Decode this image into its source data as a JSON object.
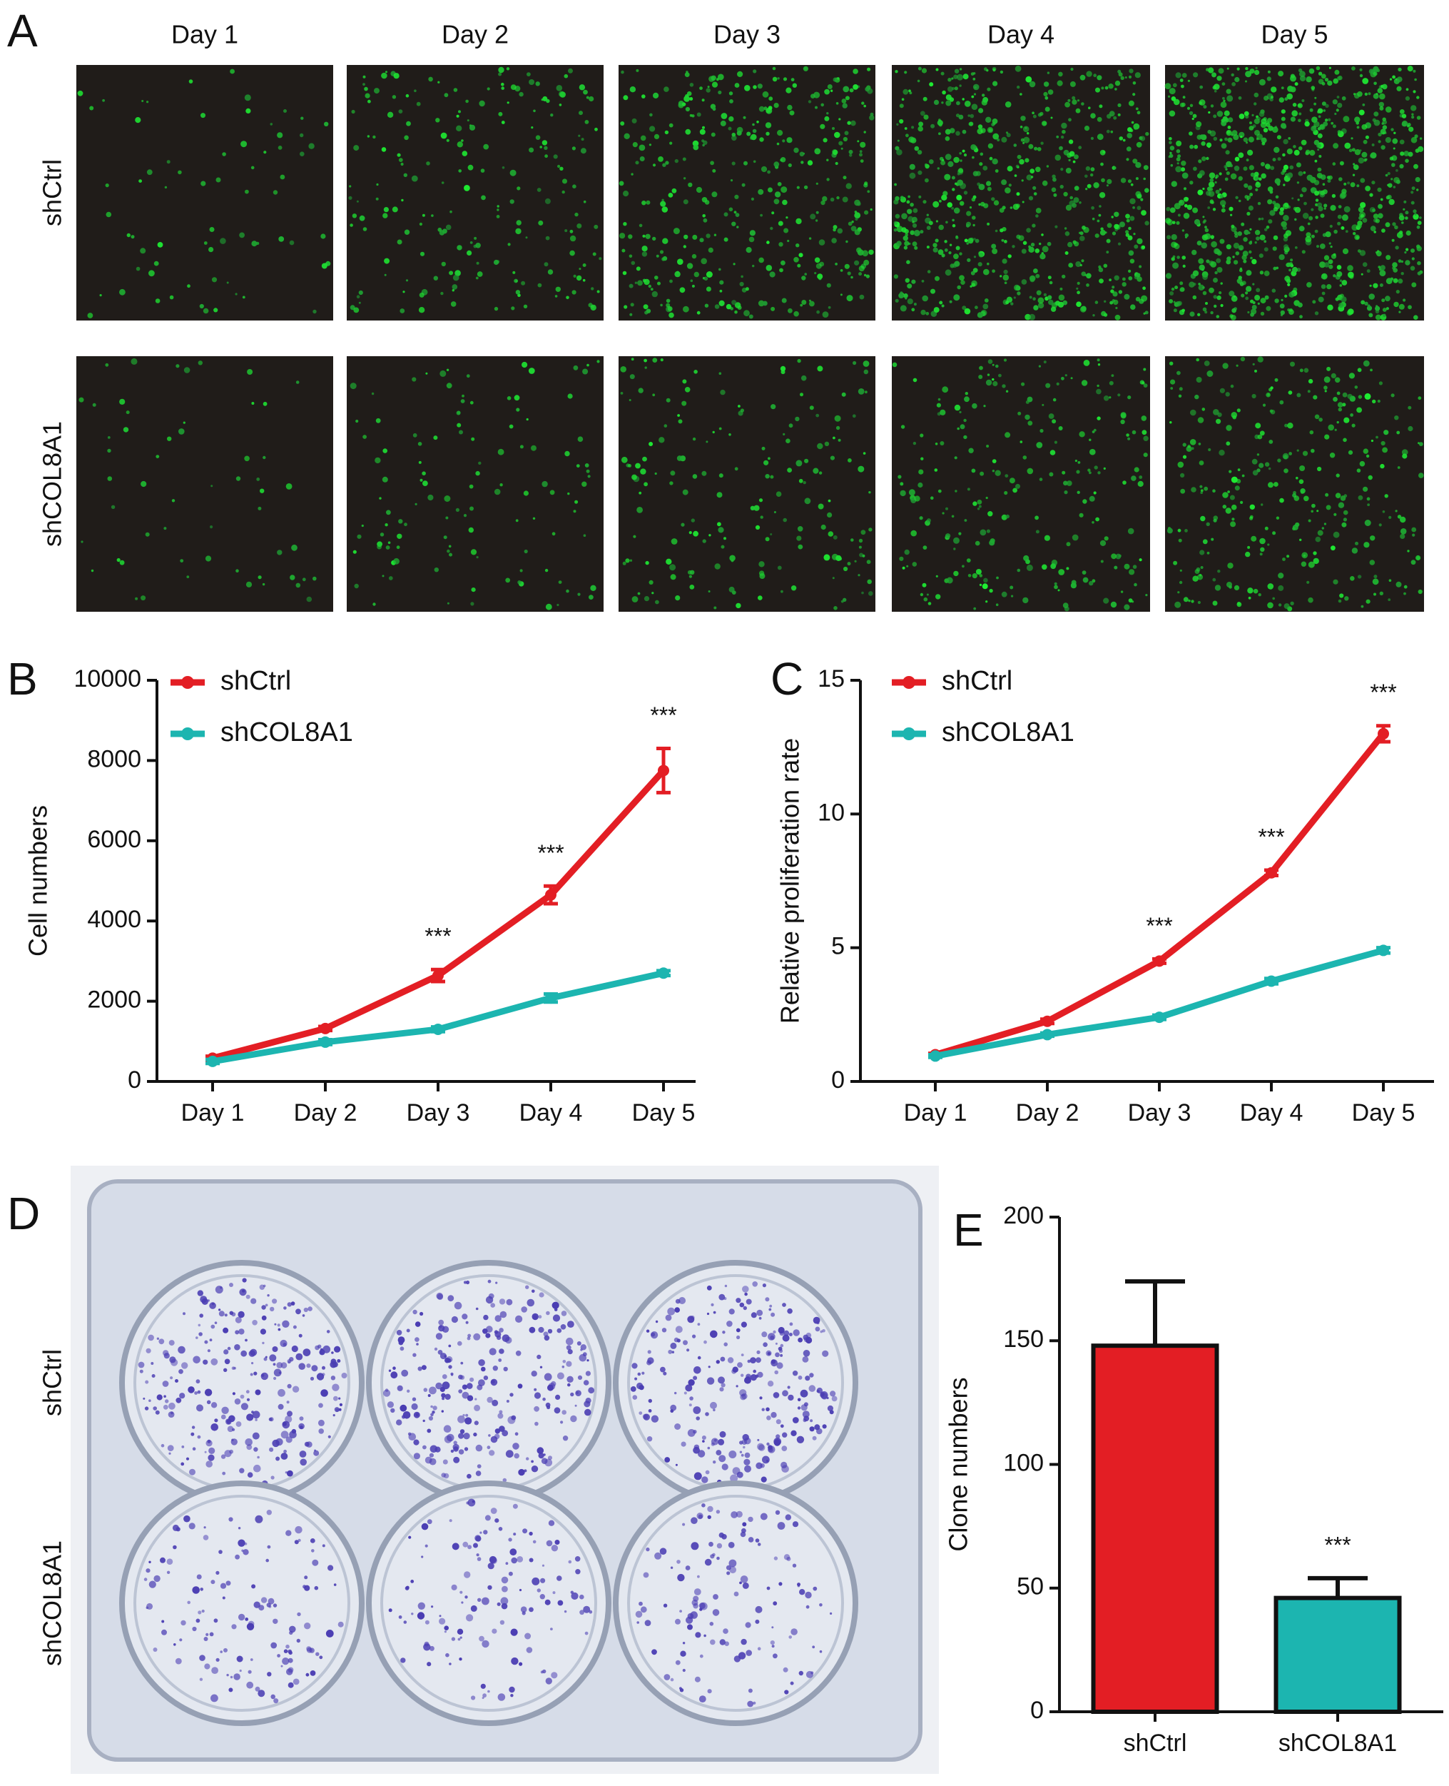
{
  "figure": {
    "panel_labels": [
      "A",
      "B",
      "C",
      "D",
      "E"
    ],
    "panel_a": {
      "columns": [
        "Day 1",
        "Day 2",
        "Day 3",
        "Day 4",
        "Day 5"
      ],
      "rows": [
        "shCtrl",
        "shCOL8A1"
      ]
    },
    "panel_d": {
      "rows": [
        "shCtrl",
        "shCOL8A1"
      ]
    }
  },
  "chart_data": [
    {
      "type": "line",
      "ylabel": "Cell numbers",
      "categories": [
        "Day 1",
        "Day 2",
        "Day 3",
        "Day 4",
        "Day 5"
      ],
      "ylim": [
        0,
        10000
      ],
      "yticks": [
        0,
        2000,
        4000,
        6000,
        8000,
        10000
      ],
      "series": [
        {
          "name": "shCtrl",
          "color": "#e31e24",
          "values": [
            580,
            1320,
            2640,
            4650,
            7750
          ],
          "errors": [
            50,
            50,
            150,
            220,
            550
          ]
        },
        {
          "name": "shCOL8A1",
          "color": "#1cb5b0",
          "values": [
            500,
            980,
            1300,
            2080,
            2700
          ],
          "errors": [
            50,
            60,
            60,
            100,
            60
          ]
        }
      ],
      "annotations": [
        "***",
        "***",
        "***"
      ]
    },
    {
      "type": "line",
      "ylabel": "Relative proliferation rate",
      "categories": [
        "Day 1",
        "Day 2",
        "Day 3",
        "Day 4",
        "Day 5"
      ],
      "ylim": [
        0,
        15
      ],
      "yticks": [
        0,
        5,
        10,
        15
      ],
      "series": [
        {
          "name": "shCtrl",
          "color": "#e31e24",
          "values": [
            1,
            2.25,
            4.5,
            7.8,
            13.0
          ],
          "errors": [
            0.05,
            0.08,
            0.08,
            0.1,
            0.3
          ]
        },
        {
          "name": "shCOL8A1",
          "color": "#1cb5b0",
          "values": [
            0.95,
            1.75,
            2.4,
            3.75,
            4.9
          ],
          "errors": [
            0.05,
            0.06,
            0.08,
            0.1,
            0.1
          ]
        }
      ],
      "annotations": [
        "***",
        "***",
        "***"
      ]
    },
    {
      "type": "bar",
      "ylabel": "Clone numbers",
      "categories": [
        "shCtrl",
        "shCOL8A1"
      ],
      "ylim": [
        0,
        200
      ],
      "yticks": [
        0,
        50,
        100,
        150,
        200
      ],
      "values": [
        148,
        46
      ],
      "errors": [
        26,
        8
      ],
      "colors": [
        "#e31e24",
        "#1cb5b0"
      ],
      "annotations": [
        "***"
      ]
    }
  ]
}
